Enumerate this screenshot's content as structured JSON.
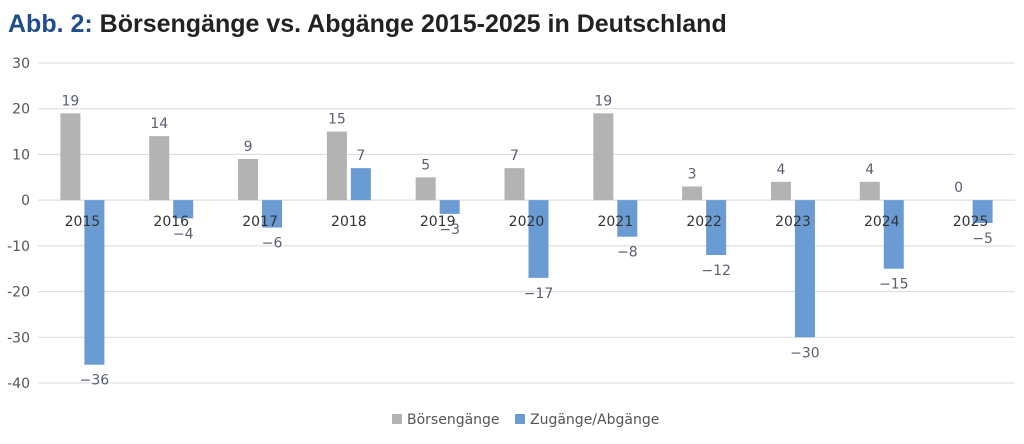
{
  "title": {
    "prefix": "Abb. 2:",
    "main": "Börsengänge vs. Abgänge 2015-2025 in Deutschland"
  },
  "colors": {
    "boersengaenge": "#b3b3b3",
    "zugaenge": "#6b9bd3",
    "grid": "#d9d9d9",
    "text": "#555555",
    "label": "#5a5f73",
    "title_prefix": "#1f4e8c"
  },
  "chart_data": {
    "type": "bar",
    "title": "Börsengänge vs. Abgänge 2015-2025 in Deutschland",
    "categories": [
      "2015",
      "2016",
      "2017",
      "2018",
      "2019",
      "2020",
      "2021",
      "2022",
      "2023",
      "2024",
      "2025"
    ],
    "series": [
      {
        "name": "Börsengänge",
        "values": [
          19,
          14,
          9,
          15,
          5,
          7,
          19,
          3,
          4,
          4,
          0
        ]
      },
      {
        "name": "Zugänge/Abgänge",
        "values": [
          -36,
          -4,
          -6,
          7,
          -3,
          -17,
          -8,
          -12,
          -30,
          -15,
          -5
        ]
      }
    ],
    "ylim": [
      -40,
      30
    ],
    "yticks": [
      30,
      20,
      10,
      0,
      -10,
      -20,
      -30,
      -40
    ],
    "grid": true,
    "legend": "bottom",
    "data_labels": true
  }
}
